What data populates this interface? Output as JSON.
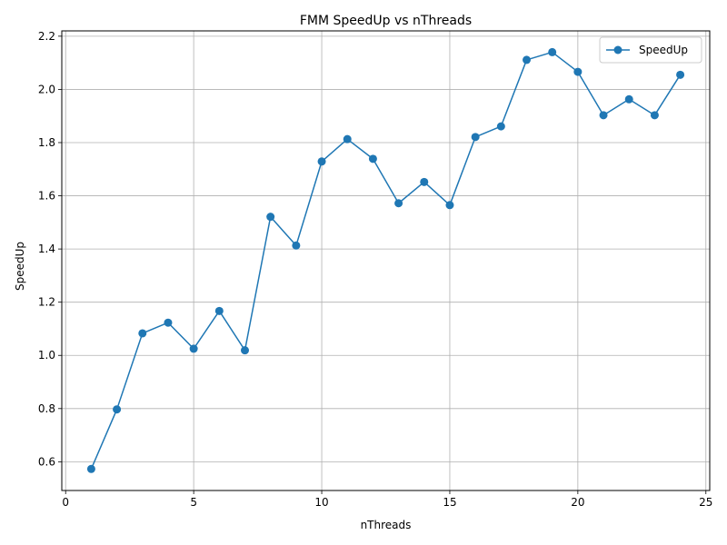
{
  "chart_data": {
    "type": "line",
    "title": "FMM SpeedUp vs nThreads",
    "xlabel": "nThreads",
    "ylabel": "SpeedUp",
    "xlim": [
      -0.15,
      25.15
    ],
    "ylim": [
      0.492,
      2.22
    ],
    "xticks": [
      0,
      5,
      10,
      15,
      20,
      25
    ],
    "yticks": [
      0.6,
      0.8,
      1.0,
      1.2,
      1.4,
      1.6,
      1.8,
      2.0,
      2.2
    ],
    "grid": true,
    "legend_position": "top-right",
    "x": [
      1,
      2,
      3,
      4,
      5,
      6,
      7,
      8,
      9,
      10,
      11,
      12,
      13,
      14,
      15,
      16,
      17,
      18,
      19,
      20,
      21,
      22,
      23,
      24
    ],
    "series": [
      {
        "name": "SpeedUp",
        "color": "#1f77b4",
        "marker": "circle",
        "values": [
          0.573,
          0.797,
          1.083,
          1.123,
          1.025,
          1.167,
          1.019,
          1.521,
          1.413,
          1.729,
          1.813,
          1.739,
          1.572,
          1.652,
          1.565,
          1.821,
          1.861,
          2.111,
          2.14,
          2.066,
          1.903,
          1.963,
          1.903,
          2.055
        ]
      }
    ]
  }
}
